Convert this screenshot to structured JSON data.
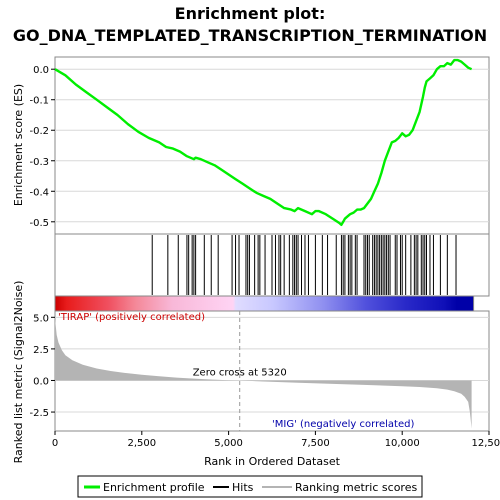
{
  "chart_data": {
    "type": "line",
    "title_line1": "Enrichment plot:",
    "title_line2": "GO_DNA_TEMPLATED_TRANSCRIPTION_TERMINATION",
    "es_panel": {
      "ylabel": "Enrichment score (ES)",
      "ylim": [
        -0.54,
        0.04
      ],
      "y_ticks": [
        0.0,
        -0.1,
        -0.2,
        -0.3,
        -0.4,
        -0.5
      ],
      "y_tick_labels": [
        "0.0",
        "-0.1",
        "-0.2",
        "-0.3",
        "-0.4",
        "-0.5"
      ],
      "x": [
        0,
        300,
        600,
        900,
        1200,
        1500,
        1800,
        2100,
        2400,
        2700,
        2800,
        2900,
        3000,
        3200,
        3400,
        3600,
        3800,
        4000,
        4050,
        4200,
        4400,
        4600,
        4800,
        5000,
        5200,
        5400,
        5600,
        5800,
        6000,
        6200,
        6400,
        6600,
        6800,
        6900,
        7000,
        7200,
        7400,
        7500,
        7600,
        7800,
        8000,
        8200,
        8250,
        8300,
        8350,
        8400,
        8500,
        8600,
        8700,
        8800,
        8900,
        9000,
        9100,
        9200,
        9300,
        9400,
        9500,
        9600,
        9700,
        9800,
        9900,
        10000,
        10100,
        10200,
        10300,
        10400,
        10500,
        10600,
        10650,
        10700,
        10800,
        10900,
        11000,
        11100,
        11200,
        11300,
        11400,
        11500,
        11600,
        11700,
        11800,
        11900,
        12000
      ],
      "y": [
        0.0,
        -0.02,
        -0.05,
        -0.075,
        -0.1,
        -0.125,
        -0.15,
        -0.18,
        -0.205,
        -0.225,
        -0.23,
        -0.235,
        -0.24,
        -0.255,
        -0.26,
        -0.27,
        -0.285,
        -0.295,
        -0.29,
        -0.295,
        -0.305,
        -0.315,
        -0.33,
        -0.345,
        -0.36,
        -0.375,
        -0.39,
        -0.405,
        -0.415,
        -0.425,
        -0.44,
        -0.455,
        -0.46,
        -0.465,
        -0.455,
        -0.465,
        -0.475,
        -0.465,
        -0.465,
        -0.475,
        -0.49,
        -0.505,
        -0.51,
        -0.5,
        -0.49,
        -0.485,
        -0.475,
        -0.47,
        -0.46,
        -0.46,
        -0.455,
        -0.44,
        -0.425,
        -0.4,
        -0.375,
        -0.34,
        -0.3,
        -0.27,
        -0.24,
        -0.235,
        -0.225,
        -0.21,
        -0.22,
        -0.215,
        -0.2,
        -0.17,
        -0.14,
        -0.09,
        -0.06,
        -0.04,
        -0.03,
        -0.02,
        0.0,
        0.01,
        0.01,
        0.02,
        0.015,
        0.03,
        0.03,
        0.025,
        0.015,
        0.005,
        0.0
      ]
    },
    "hits": [
      2800,
      3250,
      3550,
      3800,
      3850,
      3950,
      4000,
      4050,
      4300,
      4500,
      4700,
      5100,
      5200,
      5300,
      5500,
      5550,
      5600,
      5750,
      5850,
      5900,
      6050,
      6250,
      6350,
      6450,
      6500,
      6600,
      6750,
      6850,
      6900,
      6950,
      7000,
      7100,
      7200,
      7300,
      7500,
      7700,
      7850,
      8100,
      8250,
      8300,
      8350,
      8450,
      8500,
      8550,
      8650,
      8700,
      8900,
      8950,
      9000,
      9050,
      9150,
      9200,
      9250,
      9300,
      9350,
      9400,
      9450,
      9500,
      9550,
      9600,
      9650,
      9800,
      9850,
      9950,
      10000,
      10100,
      10250,
      10350,
      10400,
      10450,
      10550,
      10600,
      10650,
      10700,
      10800,
      10900,
      11100,
      11300,
      11550
    ],
    "rank_panel": {
      "ylabel": "Ranked list metric (Signal2Noise)",
      "xlabel": "Rank in Ordered Dataset",
      "ylim": [
        -4.0,
        5.5
      ],
      "y_ticks": [
        5.0,
        2.5,
        0.0,
        -2.5
      ],
      "y_tick_labels": [
        "5.0",
        "2.5",
        "0.0",
        "-2.5"
      ],
      "xlim": [
        0,
        12500
      ],
      "x_ticks": [
        0,
        2500,
        5000,
        7500,
        10000,
        12500
      ],
      "x_tick_labels": [
        "0",
        "2,500",
        "5,000",
        "7,500",
        "10,000",
        "12,500"
      ],
      "zero_cross_x": 5320,
      "zero_cross_label": "Zero cross at 5320",
      "pos_label": "'TIRAP' (positively correlated)",
      "neg_label": "'MIG' (negatively correlated)",
      "n_genes": 12000,
      "metric_x": [
        0,
        50,
        100,
        200,
        300,
        500,
        800,
        1200,
        1600,
        2000,
        2500,
        3000,
        3500,
        4000,
        4500,
        5000,
        5320,
        6000,
        7000,
        8000,
        9000,
        10000,
        10500,
        11000,
        11300,
        11500,
        11700,
        11800,
        11900,
        11950,
        12000
      ],
      "metric_y": [
        4.9,
        3.6,
        3.0,
        2.4,
        2.0,
        1.6,
        1.25,
        0.95,
        0.75,
        0.6,
        0.45,
        0.33,
        0.23,
        0.15,
        0.08,
        0.02,
        0.0,
        -0.08,
        -0.18,
        -0.27,
        -0.36,
        -0.46,
        -0.52,
        -0.62,
        -0.72,
        -0.85,
        -1.05,
        -1.3,
        -1.7,
        -2.5,
        -3.8
      ]
    },
    "heatmap_stops": [
      {
        "x": 0,
        "color": "#cc0000"
      },
      {
        "x": 350,
        "color": "#e81c1c"
      },
      {
        "x": 1600,
        "color": "#f05060"
      },
      {
        "x": 2400,
        "color": "#f48898"
      },
      {
        "x": 3500,
        "color": "#f8b8d8"
      },
      {
        "x": 5320,
        "color": "#ffd4f4"
      },
      {
        "x": 5400,
        "color": "#e0dcff"
      },
      {
        "x": 6500,
        "color": "#c8c8ff"
      },
      {
        "x": 8000,
        "color": "#9090f0"
      },
      {
        "x": 9300,
        "color": "#5050dc"
      },
      {
        "x": 10500,
        "color": "#2828c8"
      },
      {
        "x": 11600,
        "color": "#1010b8"
      },
      {
        "x": 12000,
        "color": "#0000a8"
      }
    ],
    "legend": [
      {
        "name": "Enrichment profile",
        "color": "#00ee00"
      },
      {
        "name": "Hits",
        "color": "#000000"
      },
      {
        "name": "Ranking metric scores",
        "color": "#b4b4b4"
      }
    ],
    "colors": {
      "es_line": "#00ee00",
      "metric_fill": "#b4b4b4",
      "pos_label": "#cc0000",
      "neg_label": "#0000aa"
    }
  }
}
